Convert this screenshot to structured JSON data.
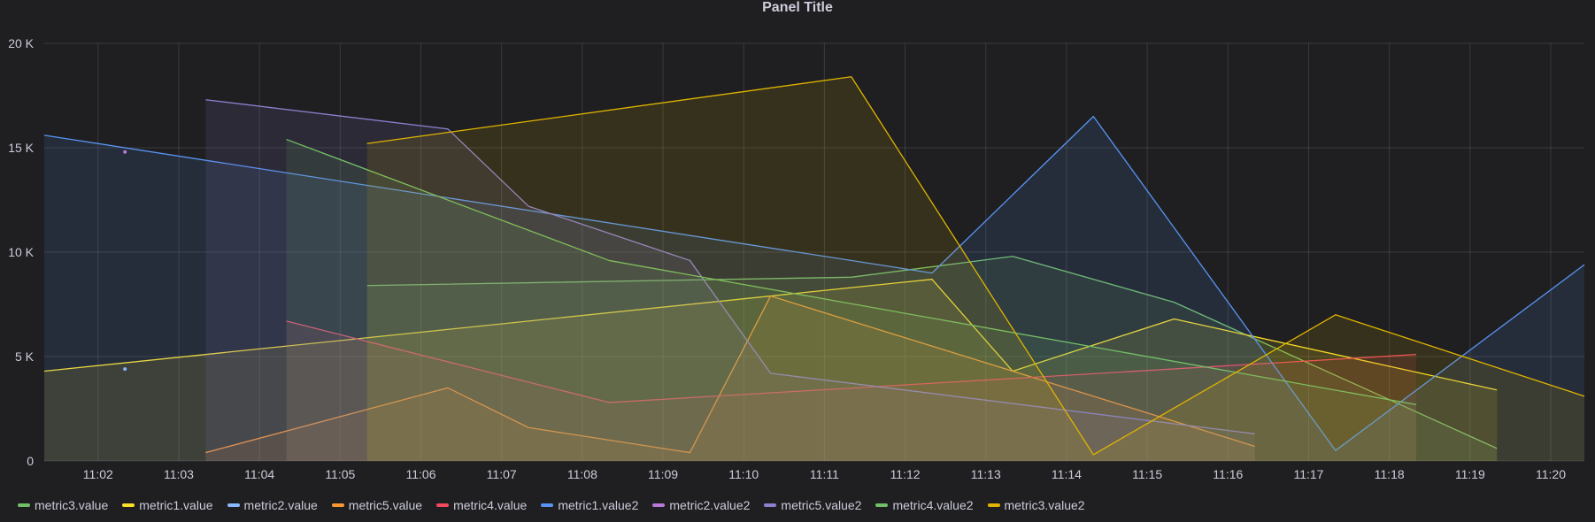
{
  "panel": {
    "title": "Panel Title"
  },
  "chart_data": {
    "type": "area",
    "title": "Panel Title",
    "x_tick_labels": [
      "11:02",
      "11:03",
      "11:04",
      "11:05",
      "11:06",
      "11:07",
      "11:08",
      "11:09",
      "11:10",
      "11:11",
      "11:12",
      "11:13",
      "11:14",
      "11:15",
      "11:16",
      "11:17",
      "11:18",
      "11:19",
      "11:20"
    ],
    "y_tick_labels": [
      "0",
      "5 K",
      "10 K",
      "15 K",
      "20 K"
    ],
    "y_ticks": [
      0,
      5000,
      10000,
      15000,
      20000
    ],
    "ylim": [
      0,
      20000
    ],
    "xlim": [
      "11:01:20",
      "11:20:25"
    ],
    "grid": true,
    "legend_position": "bottom",
    "series": [
      {
        "name": "metric3.value",
        "color": "#73bf69",
        "points": [
          [
            "11:05:20",
            8400
          ],
          [
            "11:11:20",
            8800
          ],
          [
            "11:13:20",
            9800
          ],
          [
            "11:15:20",
            7600
          ],
          [
            "11:19:20",
            600
          ]
        ]
      },
      {
        "name": "metric1.value",
        "color": "#fade2a",
        "points": [
          [
            "11:01:20",
            4300
          ],
          [
            "11:12:20",
            8700
          ],
          [
            "11:13:20",
            4300
          ],
          [
            "11:15:20",
            6800
          ],
          [
            "11:19:20",
            3400
          ]
        ]
      },
      {
        "name": "metric2.value",
        "color": "#8ab8ff",
        "points": [
          [
            "11:02:20",
            4400
          ]
        ]
      },
      {
        "name": "metric5.value",
        "color": "#ff9830",
        "points": [
          [
            "11:03:20",
            400
          ],
          [
            "11:06:20",
            3500
          ],
          [
            "11:07:20",
            1600
          ],
          [
            "11:09:20",
            400
          ],
          [
            "11:10:20",
            7900
          ],
          [
            "11:16:20",
            700
          ]
        ]
      },
      {
        "name": "metric4.value",
        "color": "#f2495c",
        "points": [
          [
            "11:04:20",
            6700
          ],
          [
            "11:08:20",
            2800
          ],
          [
            "11:18:20",
            5100
          ]
        ]
      },
      {
        "name": "metric1.value2",
        "color": "#5794f2",
        "points": [
          [
            "11:01:20",
            15600
          ],
          [
            "11:12:20",
            9000
          ],
          [
            "11:14:20",
            16500
          ],
          [
            "11:17:20",
            500
          ],
          [
            "11:20:25",
            9400
          ]
        ]
      },
      {
        "name": "metric2.value2",
        "color": "#b877d9",
        "points": [
          [
            "11:02:20",
            14800
          ]
        ]
      },
      {
        "name": "metric5.value2",
        "color": "#8f7fcf",
        "points": [
          [
            "11:03:20",
            17300
          ],
          [
            "11:06:20",
            15900
          ],
          [
            "11:07:20",
            12200
          ],
          [
            "11:09:20",
            9600
          ],
          [
            "11:10:20",
            4200
          ],
          [
            "11:16:20",
            1300
          ]
        ]
      },
      {
        "name": "metric4.value2",
        "color": "#73bf69",
        "points": [
          [
            "11:04:20",
            15400
          ],
          [
            "11:08:20",
            9600
          ],
          [
            "11:18:20",
            2700
          ]
        ]
      },
      {
        "name": "metric3.value2",
        "color": "#e0b400",
        "points": [
          [
            "11:05:20",
            15200
          ],
          [
            "11:11:20",
            18400
          ],
          [
            "11:14:20",
            300
          ],
          [
            "11:17:20",
            7000
          ],
          [
            "11:20:25",
            3100
          ]
        ]
      }
    ]
  }
}
